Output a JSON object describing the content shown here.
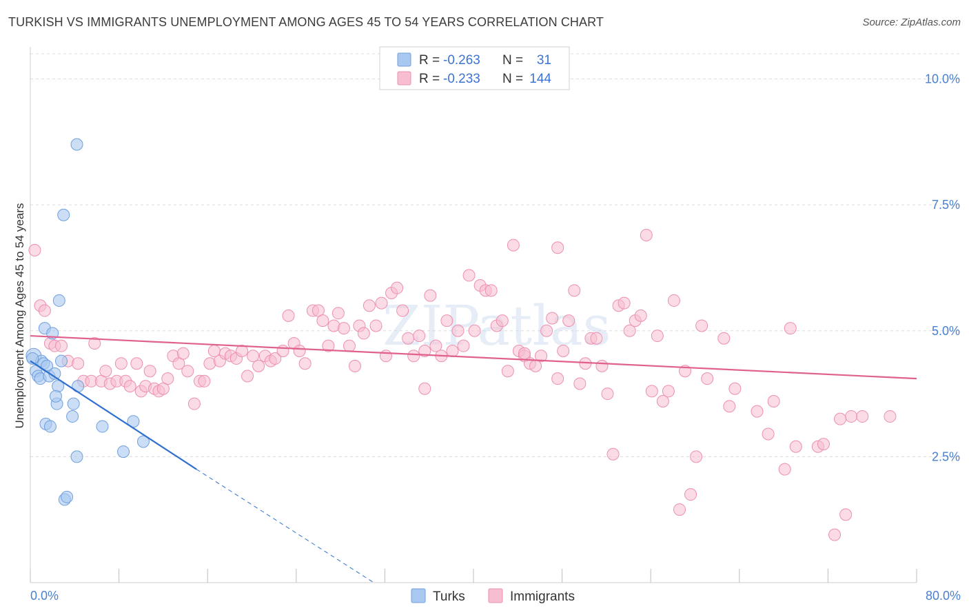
{
  "title": "TURKISH VS IMMIGRANTS UNEMPLOYMENT AMONG AGES 45 TO 54 YEARS CORRELATION CHART",
  "source": "Source: ZipAtlas.com",
  "watermark": "ZIPatlas",
  "colors": {
    "turks_fill": "#a9c8f0",
    "turks_stroke": "#6f9fde",
    "turks_line": "#2f6fd0",
    "imm_fill": "#f7bdd0",
    "imm_stroke": "#ec8fb0",
    "imm_line": "#e0608e"
  },
  "legend": {
    "rows": [
      {
        "r_label": "R =",
        "r_value": "-0.263",
        "n_label": "N =",
        "n_value": "31"
      },
      {
        "r_label": "R =",
        "r_value": "-0.233",
        "n_label": "N =",
        "n_value": "144"
      }
    ]
  },
  "chart_data": {
    "type": "scatter",
    "title": "TURKISH VS IMMIGRANTS UNEMPLOYMENT AMONG AGES 45 TO 54 YEARS CORRELATION CHART",
    "xlabel": "",
    "ylabel": "Unemployment Among Ages 45 to 54 years",
    "xlim": [
      0,
      80
    ],
    "ylim": [
      0,
      10.5
    ],
    "x_tick_labels": [
      "0.0%",
      "80.0%"
    ],
    "y_ticks": [
      2.5,
      5.0,
      7.5,
      10.0
    ],
    "y_tick_labels": [
      "2.5%",
      "5.0%",
      "7.5%",
      "10.0%"
    ],
    "grid": "horizontal dashed",
    "legend_position": "top-center",
    "series": [
      {
        "name": "Turks",
        "points": [
          [
            0.3,
            4.5
          ],
          [
            0.5,
            4.2
          ],
          [
            0.7,
            4.1
          ],
          [
            0.9,
            4.05
          ],
          [
            1.0,
            4.4
          ],
          [
            1.2,
            4.35
          ],
          [
            1.5,
            4.3
          ],
          [
            1.7,
            4.1
          ],
          [
            1.4,
            3.15
          ],
          [
            1.8,
            3.1
          ],
          [
            1.3,
            5.05
          ],
          [
            2.0,
            4.95
          ],
          [
            2.2,
            4.15
          ],
          [
            2.5,
            3.9
          ],
          [
            2.4,
            3.55
          ],
          [
            2.3,
            3.7
          ],
          [
            2.6,
            5.6
          ],
          [
            2.8,
            4.4
          ],
          [
            3.0,
            7.3
          ],
          [
            3.1,
            1.65
          ],
          [
            3.3,
            1.7
          ],
          [
            3.8,
            3.3
          ],
          [
            3.9,
            3.55
          ],
          [
            4.3,
            3.9
          ],
          [
            4.2,
            2.5
          ],
          [
            4.2,
            8.7
          ],
          [
            6.5,
            3.1
          ],
          [
            8.4,
            2.6
          ],
          [
            9.3,
            3.2
          ],
          [
            10.2,
            2.8
          ],
          [
            0.2,
            4.45
          ]
        ]
      },
      {
        "name": "Immigrants",
        "points": [
          [
            0.4,
            6.6
          ],
          [
            0.9,
            5.5
          ],
          [
            1.3,
            5.4
          ],
          [
            1.8,
            4.75
          ],
          [
            2.2,
            4.7
          ],
          [
            2.8,
            4.7
          ],
          [
            3.4,
            4.4
          ],
          [
            4.3,
            4.35
          ],
          [
            4.8,
            4.0
          ],
          [
            5.5,
            4.0
          ],
          [
            5.8,
            4.75
          ],
          [
            6.4,
            4.0
          ],
          [
            6.8,
            4.2
          ],
          [
            7.2,
            3.95
          ],
          [
            7.8,
            4.0
          ],
          [
            8.2,
            4.35
          ],
          [
            8.6,
            4.0
          ],
          [
            9.0,
            3.9
          ],
          [
            9.6,
            4.35
          ],
          [
            10.0,
            3.8
          ],
          [
            10.4,
            3.9
          ],
          [
            10.8,
            4.2
          ],
          [
            11.2,
            3.85
          ],
          [
            11.6,
            3.8
          ],
          [
            12.0,
            3.85
          ],
          [
            12.4,
            4.05
          ],
          [
            12.9,
            4.5
          ],
          [
            13.4,
            4.35
          ],
          [
            13.8,
            4.55
          ],
          [
            14.2,
            4.2
          ],
          [
            14.8,
            3.55
          ],
          [
            15.3,
            4.0
          ],
          [
            15.7,
            4.0
          ],
          [
            16.2,
            4.35
          ],
          [
            16.6,
            4.6
          ],
          [
            17.1,
            4.4
          ],
          [
            17.6,
            4.55
          ],
          [
            18.1,
            4.5
          ],
          [
            18.6,
            4.45
          ],
          [
            19.1,
            4.6
          ],
          [
            19.6,
            4.1
          ],
          [
            20.1,
            4.5
          ],
          [
            20.6,
            4.3
          ],
          [
            21.2,
            4.5
          ],
          [
            21.7,
            4.4
          ],
          [
            22.1,
            4.45
          ],
          [
            22.8,
            4.6
          ],
          [
            23.3,
            5.3
          ],
          [
            23.8,
            4.75
          ],
          [
            24.3,
            4.6
          ],
          [
            24.8,
            4.35
          ],
          [
            25.5,
            5.4
          ],
          [
            26.0,
            5.4
          ],
          [
            26.4,
            5.2
          ],
          [
            26.9,
            4.7
          ],
          [
            27.4,
            5.1
          ],
          [
            27.8,
            5.35
          ],
          [
            28.3,
            5.05
          ],
          [
            28.8,
            4.7
          ],
          [
            29.3,
            4.3
          ],
          [
            29.7,
            5.1
          ],
          [
            30.1,
            4.95
          ],
          [
            30.6,
            5.5
          ],
          [
            31.2,
            5.1
          ],
          [
            31.7,
            5.55
          ],
          [
            32.1,
            4.5
          ],
          [
            32.6,
            5.75
          ],
          [
            33.1,
            5.85
          ],
          [
            33.6,
            5.4
          ],
          [
            34.1,
            4.85
          ],
          [
            34.6,
            4.5
          ],
          [
            35.1,
            4.9
          ],
          [
            35.6,
            4.6
          ],
          [
            36.1,
            5.7
          ],
          [
            36.6,
            4.7
          ],
          [
            37.1,
            4.5
          ],
          [
            37.6,
            5.2
          ],
          [
            38.1,
            4.6
          ],
          [
            38.6,
            5.0
          ],
          [
            39.1,
            4.7
          ],
          [
            39.6,
            6.1
          ],
          [
            40.1,
            5.0
          ],
          [
            40.6,
            5.9
          ],
          [
            41.1,
            5.8
          ],
          [
            41.6,
            5.8
          ],
          [
            42.1,
            5.1
          ],
          [
            42.6,
            5.2
          ],
          [
            43.1,
            4.2
          ],
          [
            43.6,
            6.7
          ],
          [
            44.1,
            4.6
          ],
          [
            44.6,
            4.5
          ],
          [
            45.1,
            4.35
          ],
          [
            45.6,
            4.3
          ],
          [
            46.1,
            4.5
          ],
          [
            46.6,
            5.0
          ],
          [
            47.1,
            5.25
          ],
          [
            47.6,
            6.65
          ],
          [
            48.1,
            4.6
          ],
          [
            48.6,
            5.2
          ],
          [
            49.1,
            5.8
          ],
          [
            49.6,
            3.95
          ],
          [
            50.1,
            4.35
          ],
          [
            50.6,
            4.85
          ],
          [
            51.1,
            4.85
          ],
          [
            51.6,
            4.3
          ],
          [
            52.1,
            3.75
          ],
          [
            52.6,
            2.55
          ],
          [
            53.1,
            5.5
          ],
          [
            53.6,
            5.55
          ],
          [
            54.1,
            5.0
          ],
          [
            54.6,
            5.2
          ],
          [
            55.1,
            5.3
          ],
          [
            55.6,
            6.9
          ],
          [
            56.1,
            3.8
          ],
          [
            56.6,
            4.9
          ],
          [
            57.1,
            3.6
          ],
          [
            57.6,
            3.8
          ],
          [
            58.1,
            5.6
          ],
          [
            58.6,
            1.45
          ],
          [
            59.1,
            4.2
          ],
          [
            59.6,
            1.75
          ],
          [
            60.1,
            2.5
          ],
          [
            60.6,
            5.1
          ],
          [
            61.1,
            4.05
          ],
          [
            62.6,
            4.85
          ],
          [
            63.6,
            3.85
          ],
          [
            65.6,
            3.4
          ],
          [
            66.6,
            2.95
          ],
          [
            67.1,
            3.6
          ],
          [
            68.1,
            2.25
          ],
          [
            68.6,
            5.05
          ],
          [
            69.1,
            2.7
          ],
          [
            71.1,
            2.7
          ],
          [
            71.6,
            2.75
          ],
          [
            72.6,
            0.95
          ],
          [
            73.1,
            3.25
          ],
          [
            73.6,
            1.35
          ],
          [
            74.1,
            3.3
          ],
          [
            75.1,
            3.3
          ],
          [
            77.6,
            3.3
          ],
          [
            35.6,
            3.85
          ],
          [
            44.6,
            4.55
          ],
          [
            47.6,
            4.05
          ],
          [
            63.1,
            3.5
          ]
        ]
      }
    ],
    "trend_lines": [
      {
        "name": "Turks",
        "x_start": 0.0,
        "y_start": 4.4,
        "x_end": 15.0,
        "y_end": 2.25,
        "dashed_to_x": 31.0,
        "dashed_to_y": -0.05
      },
      {
        "name": "Immigrants",
        "x_start": 0.0,
        "y_start": 4.9,
        "x_end": 80.0,
        "y_end": 4.05
      }
    ]
  },
  "bottom_legend": [
    {
      "label": "Turks"
    },
    {
      "label": "Immigrants"
    }
  ]
}
